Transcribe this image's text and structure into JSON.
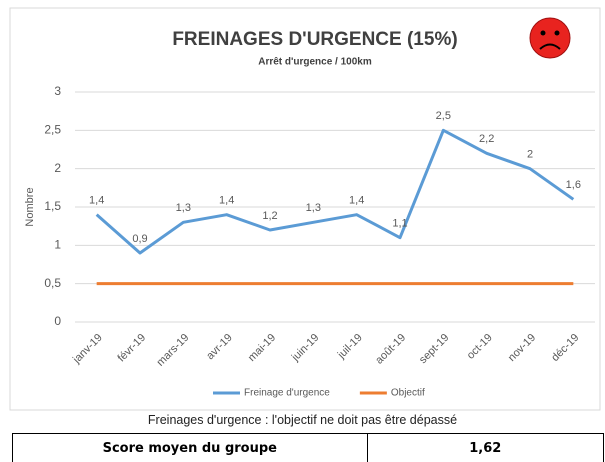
{
  "chart_data": {
    "type": "line",
    "title": "FREINAGES D'URGENCE (15%)",
    "subtitle": "Arrêt d'urgence / 100km",
    "ylabel": "Nombre",
    "categories": [
      "janv-19",
      "févr-19",
      "mars-19",
      "avr-19",
      "mai-19",
      "juin-19",
      "juil-19",
      "août-19",
      "sept-19",
      "oct-19",
      "nov-19",
      "déc-19"
    ],
    "series": [
      {
        "name": "Freinage d'urgence",
        "color": "#5b9bd5",
        "values": [
          1.4,
          0.9,
          1.3,
          1.4,
          1.2,
          1.3,
          1.4,
          1.1,
          2.5,
          2.2,
          2,
          1.6
        ],
        "value_labels": [
          "1,4",
          "0,9",
          "1,3",
          "1,4",
          "1,2",
          "1,3",
          "1,4",
          "1,1",
          "2,5",
          "2,2",
          "2",
          "1,6"
        ]
      },
      {
        "name": "Objectif",
        "color": "#ed7d31",
        "values": [
          0.5,
          0.5,
          0.5,
          0.5,
          0.5,
          0.5,
          0.5,
          0.5,
          0.5,
          0.5,
          0.5,
          0.5
        ]
      }
    ],
    "ylim": [
      0,
      3
    ],
    "yticks": [
      0,
      {
        "value": 0.5,
        "label": "0,5"
      },
      1,
      {
        "value": 1.5,
        "label": "1,5"
      },
      2,
      {
        "value": 2.5,
        "label": "2,5"
      },
      3
    ],
    "grid": true,
    "legend": "bottom"
  },
  "caption": "Freinages d'urgence : l'objectif ne doit pas être dépassé",
  "table": {
    "rows": [
      [
        "Score moyen du groupe",
        "1,62"
      ]
    ]
  }
}
